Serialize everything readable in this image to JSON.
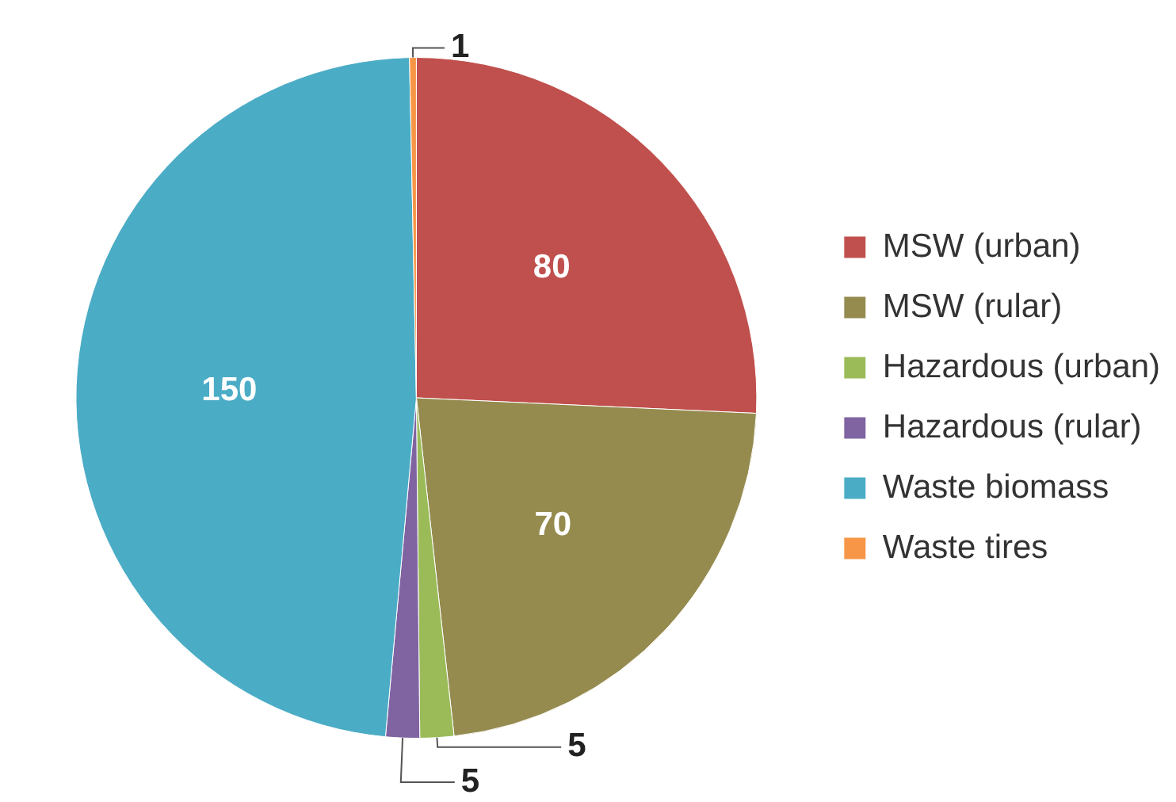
{
  "chart_data": {
    "type": "pie",
    "categories": [
      "MSW (urban)",
      "MSW (rular)",
      "Hazardous (urban)",
      "Hazardous (rular)",
      "Waste biomass",
      "Waste tires"
    ],
    "values": [
      80,
      70,
      5,
      5,
      150,
      1
    ],
    "colors": [
      "#c0504d",
      "#958b4f",
      "#9bbb59",
      "#8064a2",
      "#4bacc6",
      "#f79646"
    ],
    "data_labels": true,
    "legend": "right"
  }
}
